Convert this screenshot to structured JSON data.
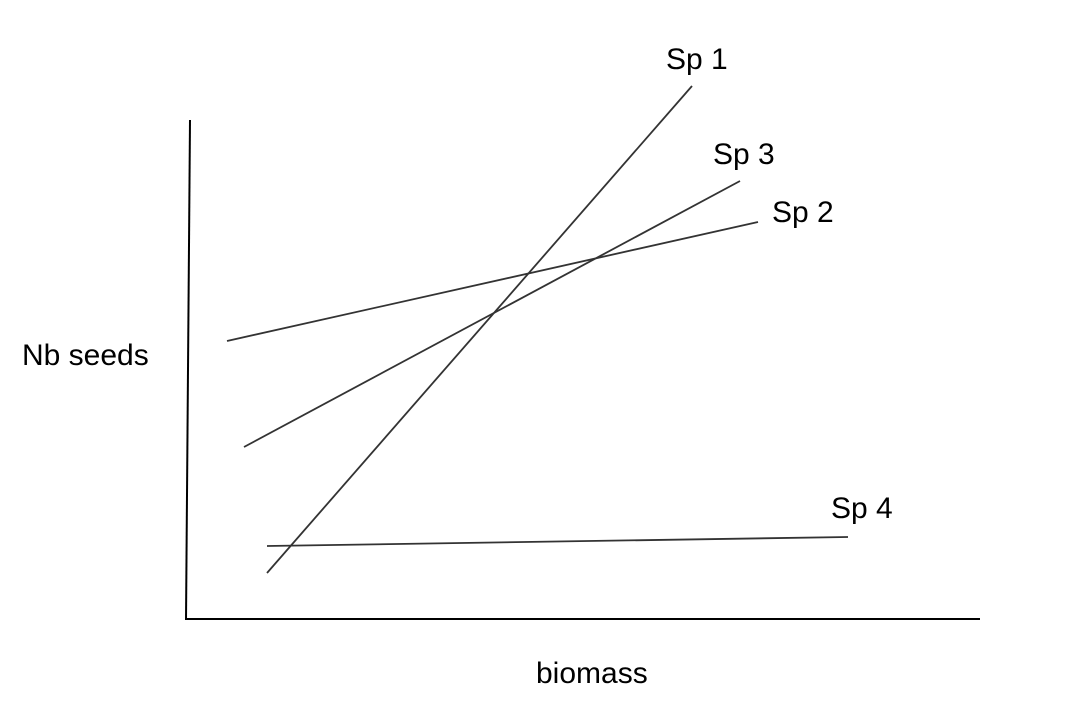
{
  "axes": {
    "x_label": "biomass",
    "y_label": "Nb seeds"
  },
  "series": [
    {
      "label": "Sp 1"
    },
    {
      "label": "Sp 2"
    },
    {
      "label": "Sp 3"
    },
    {
      "label": "Sp 4"
    }
  ],
  "colors": {
    "line": "#333333",
    "axis": "#000000"
  }
}
